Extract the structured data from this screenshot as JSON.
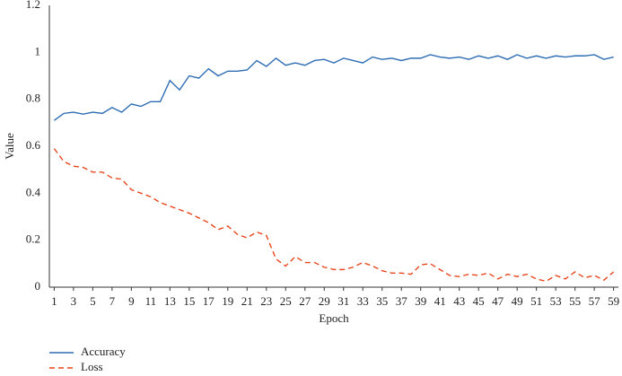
{
  "chart_data": {
    "type": "line",
    "xlabel": "Epoch",
    "ylabel": "Value",
    "x": [
      1,
      2,
      3,
      4,
      5,
      6,
      7,
      8,
      9,
      10,
      11,
      12,
      13,
      14,
      15,
      16,
      17,
      18,
      19,
      20,
      21,
      22,
      23,
      24,
      25,
      26,
      27,
      28,
      29,
      30,
      31,
      32,
      33,
      34,
      35,
      36,
      37,
      38,
      39,
      40,
      41,
      42,
      43,
      44,
      45,
      46,
      47,
      48,
      49,
      50,
      51,
      52,
      53,
      54,
      55,
      56,
      57,
      58,
      59
    ],
    "series": [
      {
        "name": "Accuracy",
        "color": "#2e6db4",
        "dash": false,
        "values": [
          0.71,
          0.74,
          0.745,
          0.737,
          0.745,
          0.74,
          0.765,
          0.745,
          0.78,
          0.77,
          0.79,
          0.79,
          0.88,
          0.84,
          0.9,
          0.89,
          0.93,
          0.9,
          0.92,
          0.92,
          0.925,
          0.965,
          0.94,
          0.975,
          0.945,
          0.955,
          0.945,
          0.965,
          0.97,
          0.955,
          0.975,
          0.965,
          0.955,
          0.98,
          0.97,
          0.975,
          0.965,
          0.975,
          0.975,
          0.99,
          0.98,
          0.975,
          0.98,
          0.97,
          0.985,
          0.975,
          0.985,
          0.97,
          0.99,
          0.975,
          0.985,
          0.975,
          0.985,
          0.98,
          0.985,
          0.985,
          0.99,
          0.97,
          0.98
        ]
      },
      {
        "name": "Loss",
        "color": "#e8471e",
        "dash": true,
        "values": [
          0.59,
          0.535,
          0.515,
          0.51,
          0.49,
          0.49,
          0.465,
          0.46,
          0.415,
          0.4,
          0.385,
          0.36,
          0.345,
          0.33,
          0.315,
          0.295,
          0.275,
          0.245,
          0.26,
          0.225,
          0.21,
          0.235,
          0.22,
          0.12,
          0.09,
          0.13,
          0.105,
          0.105,
          0.085,
          0.075,
          0.075,
          0.085,
          0.105,
          0.09,
          0.07,
          0.06,
          0.06,
          0.055,
          0.095,
          0.1,
          0.075,
          0.05,
          0.045,
          0.055,
          0.05,
          0.06,
          0.035,
          0.055,
          0.045,
          0.055,
          0.035,
          0.025,
          0.05,
          0.035,
          0.065,
          0.04,
          0.05,
          0.03,
          0.065
        ]
      }
    ],
    "xlim": [
      0.5,
      59.5
    ],
    "xticks": [
      1,
      3,
      5,
      7,
      9,
      11,
      13,
      15,
      17,
      19,
      21,
      23,
      25,
      27,
      29,
      31,
      33,
      35,
      37,
      39,
      41,
      43,
      45,
      47,
      49,
      51,
      53,
      55,
      57,
      59
    ],
    "ylim": [
      0,
      1.2
    ],
    "yticks": [
      0,
      0.2,
      0.4,
      0.6,
      0.8,
      1,
      1.2
    ],
    "grid": false,
    "legend": "bottom-left"
  }
}
